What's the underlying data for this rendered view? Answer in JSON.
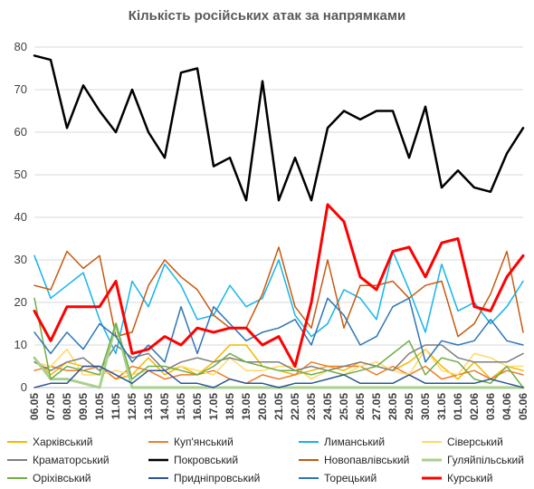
{
  "chart_data": {
    "type": "line",
    "title": "Кількість російських атак за напрямками",
    "xlabel": "",
    "ylabel": "",
    "ylim": [
      0,
      80
    ],
    "yticks": [
      0,
      10,
      20,
      30,
      40,
      50,
      60,
      70,
      80
    ],
    "grid": true,
    "legend_position": "bottom",
    "categories": [
      "06.05",
      "07.05",
      "08.05",
      "09.05",
      "10.05",
      "11.05",
      "12.05",
      "13.05",
      "14.05",
      "15.05",
      "16.05",
      "17.05",
      "18.05",
      "19.05",
      "20.05",
      "21.05",
      "22.05",
      "23.05",
      "24.05",
      "25.05",
      "26.05",
      "27.05",
      "28.05",
      "29.05",
      "30.05",
      "31.05",
      "01.06",
      "02.06",
      "03.06",
      "04.06",
      "05.06"
    ],
    "x_label_every": 1,
    "series": [
      {
        "name": "Харківський",
        "color": "#f3b800",
        "width": 1.5,
        "values": [
          7,
          3,
          6,
          5,
          5,
          2,
          3,
          7,
          3,
          5,
          3,
          6,
          10,
          10,
          5,
          4,
          3,
          4,
          5,
          4,
          6,
          5,
          4,
          6,
          9,
          5,
          2,
          6,
          2,
          5,
          4
        ]
      },
      {
        "name": "Куп'янський",
        "color": "#ed7d31",
        "width": 1.5,
        "values": [
          4,
          5,
          4,
          4,
          5,
          2,
          5,
          4,
          2,
          3,
          3,
          4,
          2,
          1,
          3,
          2,
          3,
          6,
          5,
          5,
          5,
          3,
          5,
          3,
          5,
          2,
          3,
          4,
          2,
          4,
          3
        ]
      },
      {
        "name": "Лиманський",
        "color": "#13b5ea",
        "width": 1.5,
        "values": [
          31,
          21,
          24,
          27,
          16,
          8,
          25,
          19,
          29,
          24,
          16,
          17,
          24,
          19,
          21,
          30,
          17,
          12,
          15,
          23,
          21,
          16,
          32,
          23,
          13,
          29,
          18,
          20,
          15,
          19,
          25
        ]
      },
      {
        "name": "Сіверський",
        "color": "#ffd966",
        "width": 1.5,
        "values": [
          6,
          5,
          9,
          3,
          3,
          4,
          3,
          4,
          4,
          5,
          4,
          3,
          7,
          4,
          4,
          5,
          5,
          2,
          4,
          3,
          5,
          6,
          4,
          3,
          9,
          4,
          3,
          8,
          7,
          5,
          5
        ]
      },
      {
        "name": "Краматорський",
        "color": "#7f7f7f",
        "width": 1.5,
        "values": [
          6,
          4,
          6,
          7,
          4,
          10,
          7,
          8,
          4,
          6,
          7,
          6,
          7,
          6,
          6,
          6,
          4,
          5,
          4,
          5,
          6,
          5,
          4,
          8,
          10,
          10,
          7,
          6,
          6,
          6,
          8
        ]
      },
      {
        "name": "Покровський",
        "color": "#000000",
        "width": 2.5,
        "values": [
          78,
          77,
          61,
          71,
          65,
          60,
          70,
          60,
          54,
          74,
          75,
          52,
          54,
          44,
          72,
          44,
          54,
          44,
          61,
          65,
          63,
          65,
          65,
          54,
          66,
          47,
          51,
          47,
          46,
          55,
          61
        ]
      },
      {
        "name": "Новопавлівський",
        "color": "#c55a11",
        "width": 1.5,
        "values": [
          24,
          23,
          32,
          28,
          31,
          12,
          13,
          24,
          30,
          26,
          23,
          17,
          14,
          14,
          22,
          33,
          19,
          14,
          30,
          14,
          24,
          24,
          25,
          21,
          24,
          25,
          12,
          15,
          22,
          32,
          13
        ]
      },
      {
        "name": "Гуляйпільський",
        "color": "#a9d18e",
        "width": 3,
        "values": [
          7,
          2,
          2,
          1,
          0,
          15,
          0,
          0,
          0,
          0,
          0,
          0,
          0,
          0,
          0,
          0,
          0,
          0,
          0,
          0,
          0,
          0,
          0,
          0,
          0,
          0,
          0,
          0,
          0,
          0,
          0
        ]
      },
      {
        "name": "Оріхівський",
        "color": "#70ad47",
        "width": 1.5,
        "values": [
          21,
          2,
          5,
          4,
          3,
          15,
          2,
          5,
          5,
          4,
          3,
          5,
          8,
          6,
          5,
          4,
          4,
          3,
          4,
          3,
          4,
          5,
          8,
          11,
          3,
          7,
          6,
          2,
          1,
          5,
          0
        ]
      },
      {
        "name": "Придніпровський",
        "color": "#2e5597",
        "width": 1.5,
        "values": [
          0,
          1,
          1,
          5,
          5,
          3,
          1,
          4,
          4,
          1,
          1,
          0,
          2,
          1,
          1,
          0,
          1,
          1,
          2,
          3,
          1,
          1,
          1,
          3,
          1,
          1,
          1,
          1,
          2,
          1,
          0
        ]
      },
      {
        "name": "Торецький",
        "color": "#2e75b6",
        "width": 1.5,
        "values": [
          13,
          8,
          13,
          9,
          15,
          12,
          6,
          10,
          6,
          19,
          8,
          19,
          15,
          11,
          13,
          14,
          16,
          10,
          21,
          17,
          10,
          12,
          19,
          21,
          6,
          11,
          10,
          11,
          16,
          11,
          10
        ]
      },
      {
        "name": "Курський",
        "color": "#ff0000",
        "width": 3,
        "values": [
          18,
          11,
          19,
          19,
          19,
          25,
          8,
          9,
          12,
          10,
          14,
          13,
          14,
          14,
          10,
          12,
          5,
          20,
          43,
          39,
          26,
          23,
          32,
          33,
          26,
          34,
          35,
          19,
          18,
          26,
          31
        ]
      }
    ]
  }
}
